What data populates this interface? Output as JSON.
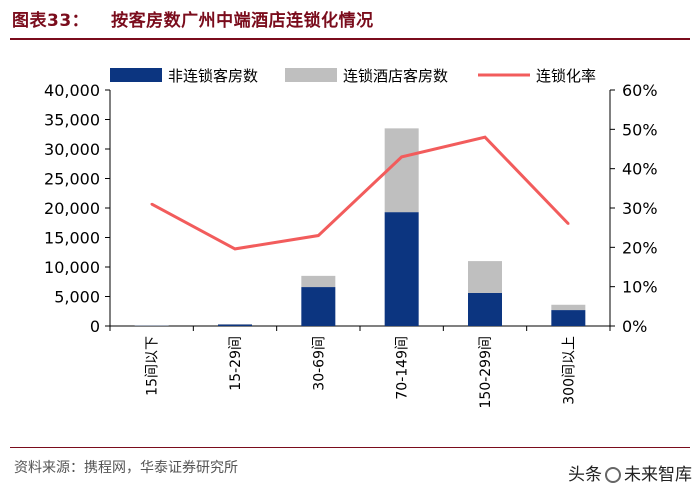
{
  "header": {
    "figure_label": "图表33：",
    "title": "按客房数广州中端酒店连锁化情况"
  },
  "footer": {
    "source": "资料来源：携程网，华泰证券研究所",
    "watermark_prefix": "头条",
    "watermark_text": "未来智库"
  },
  "colors": {
    "non_chain": "#0c3580",
    "chain": "#bfbfbf",
    "rate": "#f25c5c",
    "title": "#7a0c1c"
  },
  "chart_data": {
    "type": "bar",
    "stacked": true,
    "title": "按客房数广州中端酒店连锁化情况",
    "categories": [
      "15间以下",
      "15-29间",
      "30-69间",
      "70-149间",
      "150-299间",
      "300间以上"
    ],
    "series": [
      {
        "name": "非连锁客房数",
        "type": "bar",
        "axis": "left",
        "values": [
          50,
          250,
          6600,
          19300,
          5600,
          2700
        ]
      },
      {
        "name": "连锁酒店客房数",
        "type": "bar",
        "axis": "left",
        "values": [
          30,
          60,
          1900,
          14200,
          5400,
          900
        ]
      },
      {
        "name": "连锁化率",
        "type": "line",
        "axis": "right",
        "values": [
          0.31,
          0.196,
          0.23,
          0.43,
          0.48,
          0.26
        ]
      }
    ],
    "y_left": {
      "min": 0,
      "max": 40000,
      "step": 5000,
      "tick_labels": [
        "0",
        "5,000",
        "10,000",
        "15,000",
        "20,000",
        "25,000",
        "30,000",
        "35,000",
        "40,000"
      ]
    },
    "y_right": {
      "min": 0,
      "max": 0.6,
      "step": 0.1,
      "tick_labels": [
        "0%",
        "10%",
        "20%",
        "30%",
        "40%",
        "50%",
        "60%"
      ]
    },
    "legend": [
      "非连锁客房数",
      "连锁酒店客房数",
      "连锁化率"
    ],
    "legend_position": "top"
  }
}
